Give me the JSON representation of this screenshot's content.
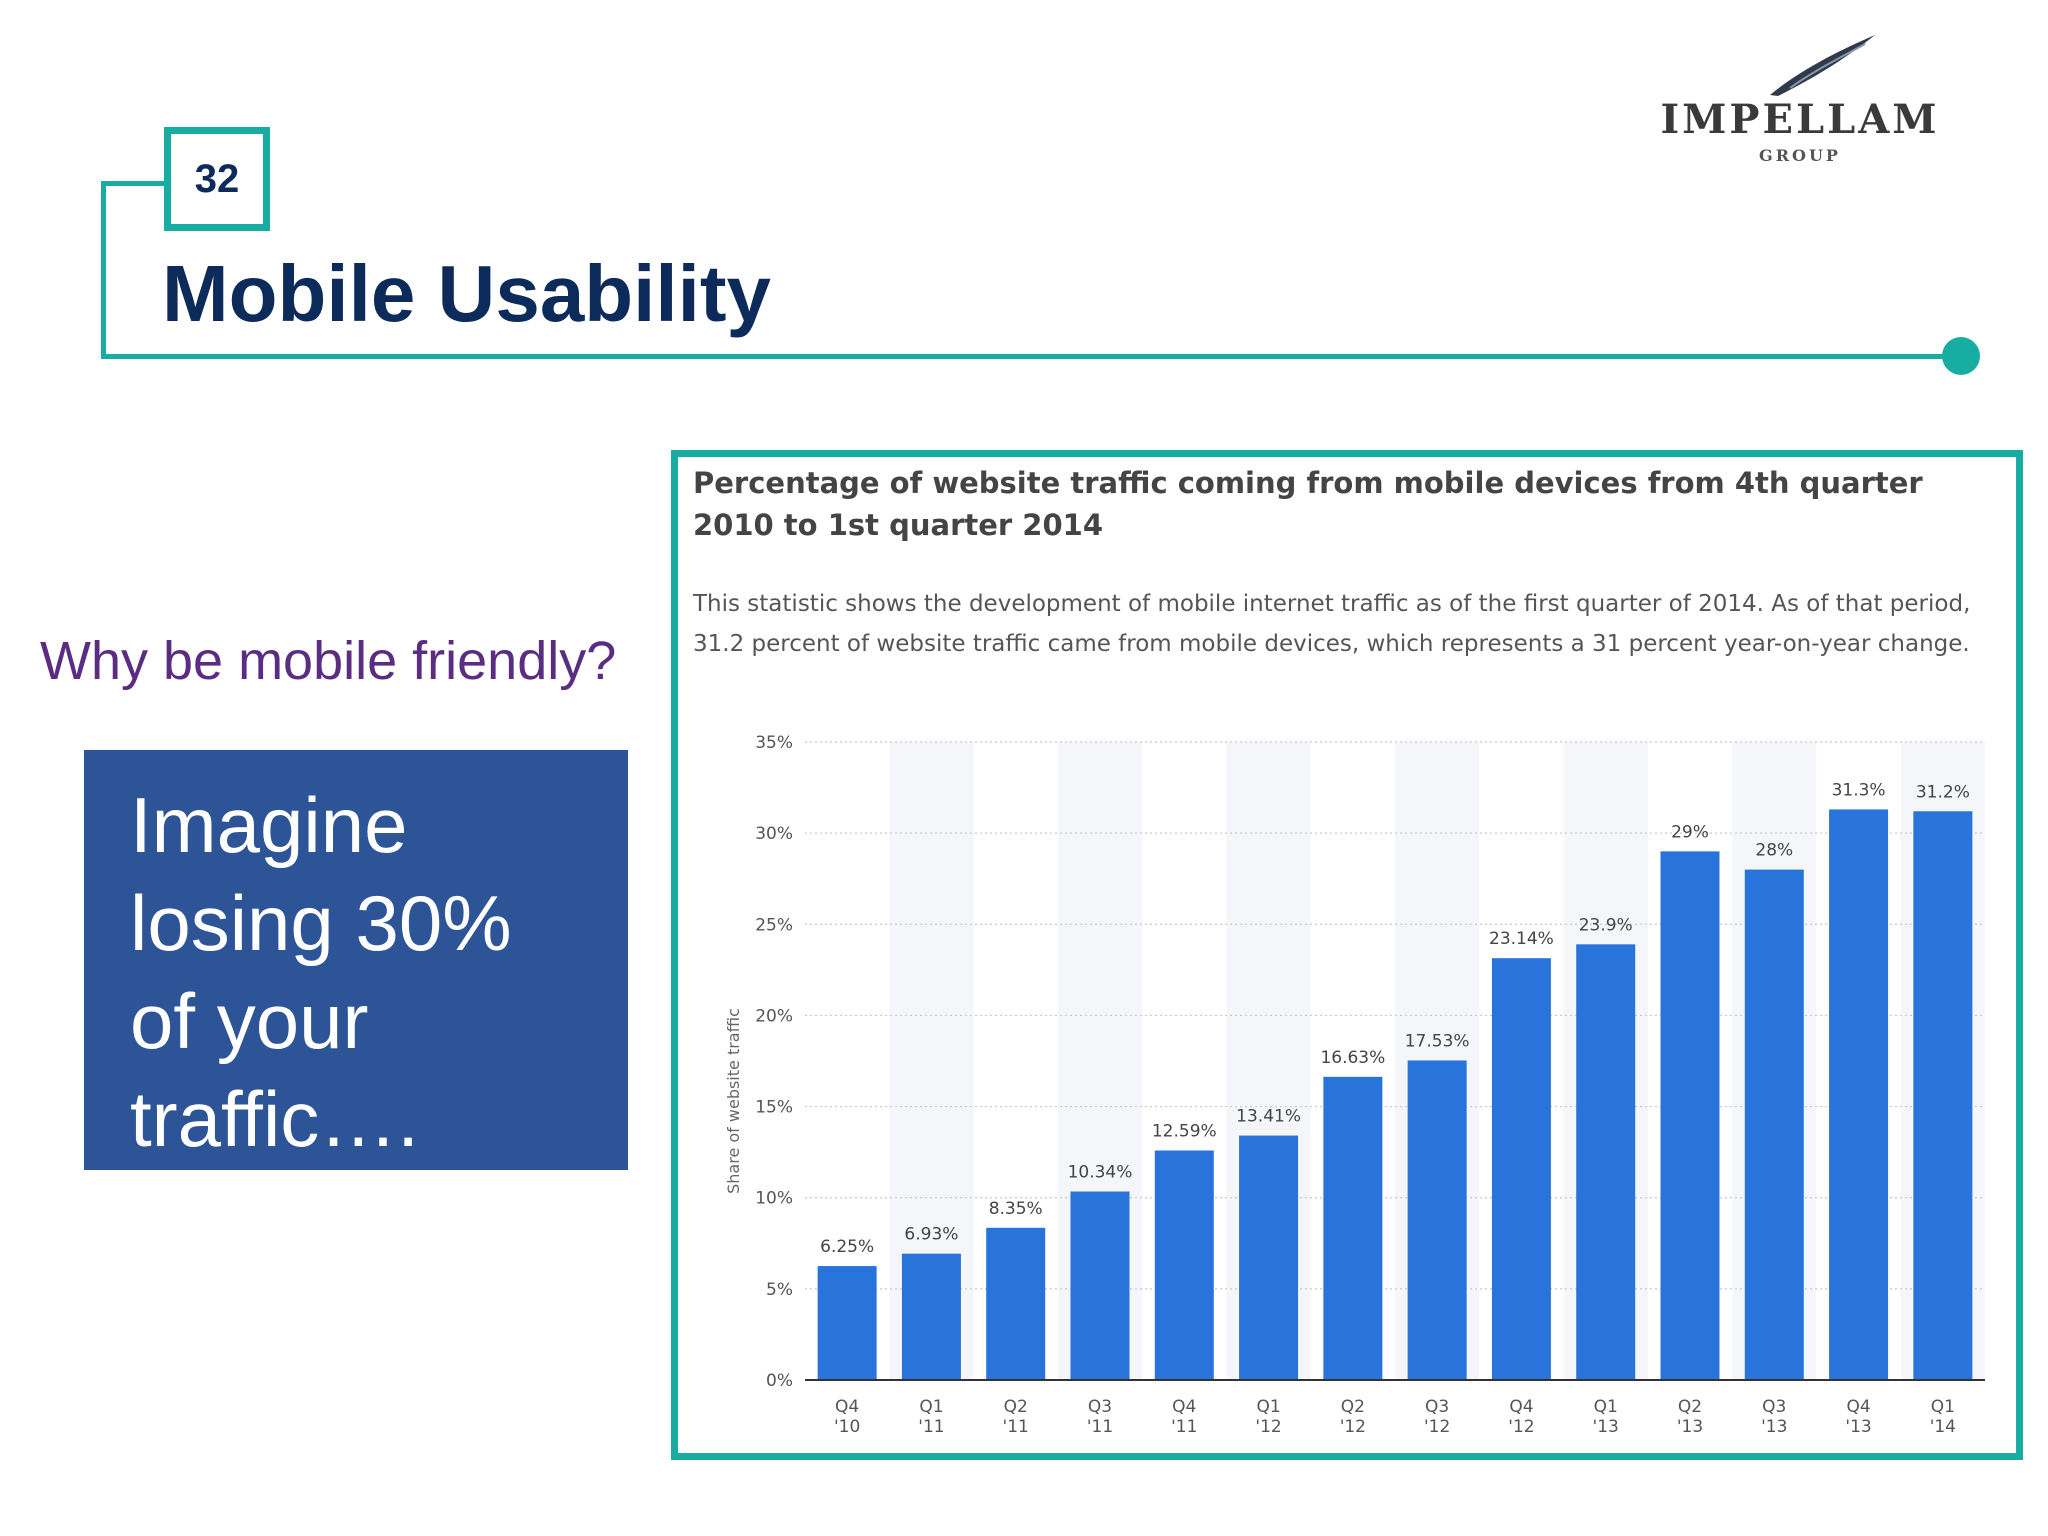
{
  "slide": {
    "number": "32",
    "title": "Mobile Usability",
    "question": "Why be mobile friendly?",
    "callout": "Imagine losing 30% of your traffic….",
    "accent_color": "#17ada3",
    "title_color": "#0d2b5a",
    "callout_bg": "#2d5496"
  },
  "logo": {
    "name": "IMPELLAM",
    "sub": "GROUP"
  },
  "chart_data": {
    "type": "bar",
    "title": "Percentage of website traffic coming from mobile devices from 4th quarter 2010 to 1st quarter 2014",
    "description": "This statistic shows the development of mobile internet traffic as of the first quarter of 2014. As of that period, 31.2 percent of website traffic came from mobile devices, which represents a 31 percent year-on-year change.",
    "ylabel": "Share of website traffic",
    "xlabel": "",
    "ylim": [
      0,
      35
    ],
    "yticks": [
      "0%",
      "5%",
      "10%",
      "15%",
      "20%",
      "25%",
      "30%",
      "35%"
    ],
    "grid": true,
    "bar_color": "#2874db",
    "categories": [
      [
        "Q4",
        "'10"
      ],
      [
        "Q1",
        "'11"
      ],
      [
        "Q2",
        "'11"
      ],
      [
        "Q3",
        "'11"
      ],
      [
        "Q4",
        "'11"
      ],
      [
        "Q1",
        "'12"
      ],
      [
        "Q2",
        "'12"
      ],
      [
        "Q3",
        "'12"
      ],
      [
        "Q4",
        "'12"
      ],
      [
        "Q1",
        "'13"
      ],
      [
        "Q2",
        "'13"
      ],
      [
        "Q3",
        "'13"
      ],
      [
        "Q4",
        "'13"
      ],
      [
        "Q1",
        "'14"
      ]
    ],
    "values": [
      6.25,
      6.93,
      8.35,
      10.34,
      12.59,
      13.41,
      16.63,
      17.53,
      23.14,
      23.9,
      29,
      28,
      31.3,
      31.2
    ],
    "value_labels": [
      "6.25%",
      "6.93%",
      "8.35%",
      "10.34%",
      "12.59%",
      "13.41%",
      "16.63%",
      "17.53%",
      "23.14%",
      "23.9%",
      "29%",
      "28%",
      "31.3%",
      "31.2%"
    ]
  }
}
